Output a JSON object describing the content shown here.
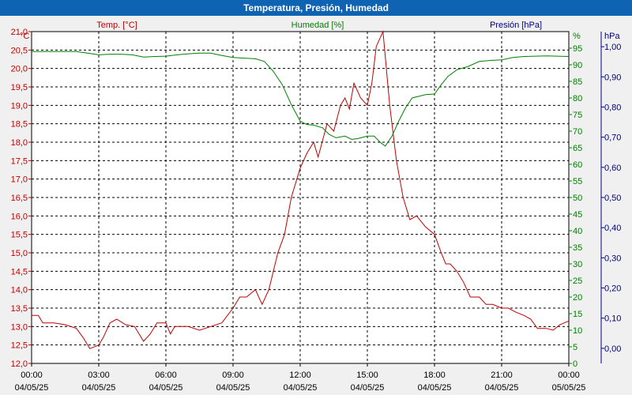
{
  "window": {
    "title": "Temperatura, Presión, Humedad"
  },
  "colors": {
    "temp": "#c00000",
    "hum": "#008000",
    "pres": "#000080",
    "titlebar": "#0f63b3"
  },
  "chart_data": {
    "type": "line",
    "title": "Temperatura, Presión, Humedad",
    "x_ticks": [
      {
        "time": "00:00",
        "date": "04/05/25"
      },
      {
        "time": "03:00",
        "date": "04/05/25"
      },
      {
        "time": "06:00",
        "date": "04/05/25"
      },
      {
        "time": "09:00",
        "date": "04/05/25"
      },
      {
        "time": "12:00",
        "date": "04/05/25"
      },
      {
        "time": "15:00",
        "date": "04/05/25"
      },
      {
        "time": "18:00",
        "date": "04/05/25"
      },
      {
        "time": "21:00",
        "date": "04/05/25"
      },
      {
        "time": "00:00",
        "date": "05/05/25"
      }
    ],
    "xlim": [
      0,
      24
    ],
    "grid": true,
    "axes": {
      "temp": {
        "label": "Temp. [°C]",
        "unit": "°C",
        "ylim": [
          12.0,
          21.0
        ],
        "ticks": [
          "12,0",
          "12,5",
          "13,0",
          "13,5",
          "14,0",
          "14,5",
          "15,0",
          "15,5",
          "16,0",
          "16,5",
          "17,0",
          "17,5",
          "18,0",
          "18,5",
          "19,0",
          "19,5",
          "20,0",
          "20,5",
          "21,0"
        ]
      },
      "hum": {
        "label": "Humedad [%]",
        "unit": "%",
        "ylim": [
          0,
          100
        ],
        "ticks": [
          "0",
          "5",
          "10",
          "15",
          "20",
          "25",
          "30",
          "35",
          "40",
          "45",
          "50",
          "55",
          "60",
          "65",
          "70",
          "75",
          "80",
          "85",
          "90",
          "95"
        ]
      },
      "pres": {
        "label": "Presión [hPa]",
        "unit": "hPa",
        "ylim": [
          -0.05,
          1.05
        ],
        "ticks": [
          "0,00",
          "0,10",
          "0,20",
          "0,30",
          "0,40",
          "0,50",
          "0,60",
          "0,70",
          "0,80",
          "0,90",
          "1,00"
        ]
      }
    },
    "series": [
      {
        "name": "Temp. [°C]",
        "axis": "temp",
        "points": [
          [
            0,
            13.3
          ],
          [
            0.3,
            13.3
          ],
          [
            0.5,
            13.1
          ],
          [
            1.0,
            13.1
          ],
          [
            1.5,
            13.05
          ],
          [
            2.0,
            12.95
          ],
          [
            2.3,
            12.7
          ],
          [
            2.6,
            12.4
          ],
          [
            3.0,
            12.5
          ],
          [
            3.2,
            12.7
          ],
          [
            3.5,
            13.1
          ],
          [
            3.8,
            13.2
          ],
          [
            4.2,
            13.05
          ],
          [
            4.6,
            13.0
          ],
          [
            5.0,
            12.6
          ],
          [
            5.3,
            12.8
          ],
          [
            5.6,
            13.1
          ],
          [
            6.0,
            13.1
          ],
          [
            6.2,
            12.8
          ],
          [
            6.4,
            13.0
          ],
          [
            7.0,
            13.0
          ],
          [
            7.5,
            12.9
          ],
          [
            8.0,
            13.0
          ],
          [
            8.5,
            13.1
          ],
          [
            9.0,
            13.5
          ],
          [
            9.3,
            13.8
          ],
          [
            9.6,
            13.8
          ],
          [
            10.0,
            14.0
          ],
          [
            10.3,
            13.6
          ],
          [
            10.6,
            14.0
          ],
          [
            11.0,
            15.0
          ],
          [
            11.3,
            15.5
          ],
          [
            11.6,
            16.5
          ],
          [
            12.0,
            17.3
          ],
          [
            12.3,
            17.7
          ],
          [
            12.6,
            18.0
          ],
          [
            12.8,
            17.6
          ],
          [
            13.2,
            18.5
          ],
          [
            13.5,
            18.3
          ],
          [
            13.8,
            19.0
          ],
          [
            14.0,
            19.2
          ],
          [
            14.2,
            18.9
          ],
          [
            14.4,
            19.6
          ],
          [
            14.7,
            19.2
          ],
          [
            15.0,
            19.0
          ],
          [
            15.2,
            19.6
          ],
          [
            15.4,
            20.6
          ],
          [
            15.7,
            21.0
          ],
          [
            16.0,
            19.0
          ],
          [
            16.3,
            17.5
          ],
          [
            16.6,
            16.5
          ],
          [
            16.9,
            15.9
          ],
          [
            17.2,
            16.0
          ],
          [
            17.6,
            15.7
          ],
          [
            18.0,
            15.5
          ],
          [
            18.3,
            15.0
          ],
          [
            18.5,
            14.7
          ],
          [
            18.7,
            14.7
          ],
          [
            19.0,
            14.5
          ],
          [
            19.3,
            14.2
          ],
          [
            19.6,
            13.8
          ],
          [
            20.0,
            13.8
          ],
          [
            20.3,
            13.6
          ],
          [
            20.6,
            13.6
          ],
          [
            21.0,
            13.5
          ],
          [
            21.3,
            13.5
          ],
          [
            21.6,
            13.4
          ],
          [
            22.0,
            13.3
          ],
          [
            22.3,
            13.2
          ],
          [
            22.6,
            12.95
          ],
          [
            23.0,
            12.95
          ],
          [
            23.3,
            12.9
          ],
          [
            23.6,
            13.05
          ],
          [
            24.0,
            13.15
          ]
        ]
      },
      {
        "name": "Humedad [%]",
        "axis": "hum",
        "points": [
          [
            0,
            94
          ],
          [
            1.0,
            94
          ],
          [
            1.5,
            94
          ],
          [
            2.0,
            94
          ],
          [
            2.5,
            93.5
          ],
          [
            3.0,
            93
          ],
          [
            3.5,
            93.2
          ],
          [
            4.0,
            93.2
          ],
          [
            4.5,
            93
          ],
          [
            5.0,
            92.3
          ],
          [
            5.5,
            92.5
          ],
          [
            6.0,
            92.6
          ],
          [
            6.5,
            93
          ],
          [
            7.0,
            93.3
          ],
          [
            7.5,
            93.5
          ],
          [
            8.0,
            93.5
          ],
          [
            8.5,
            92.8
          ],
          [
            9.0,
            92.2
          ],
          [
            9.5,
            92
          ],
          [
            10.0,
            91.8
          ],
          [
            10.4,
            91
          ],
          [
            10.8,
            88
          ],
          [
            11.2,
            84
          ],
          [
            11.6,
            78
          ],
          [
            12.0,
            73
          ],
          [
            12.3,
            72
          ],
          [
            12.6,
            71.8
          ],
          [
            13.0,
            71
          ],
          [
            13.3,
            69
          ],
          [
            13.6,
            68
          ],
          [
            14.0,
            68.5
          ],
          [
            14.3,
            67.5
          ],
          [
            14.6,
            67.8
          ],
          [
            15.0,
            68.5
          ],
          [
            15.3,
            68.5
          ],
          [
            15.6,
            66.5
          ],
          [
            15.8,
            65.5
          ],
          [
            16.1,
            68.5
          ],
          [
            16.4,
            73
          ],
          [
            16.7,
            77
          ],
          [
            17.0,
            80
          ],
          [
            17.3,
            80.5
          ],
          [
            17.6,
            81
          ],
          [
            18.0,
            81.2
          ],
          [
            18.3,
            84
          ],
          [
            18.6,
            86.5
          ],
          [
            19.0,
            88.5
          ],
          [
            19.5,
            89.5
          ],
          [
            20.0,
            91
          ],
          [
            20.5,
            91.3
          ],
          [
            21.0,
            91.5
          ],
          [
            21.5,
            92.2
          ],
          [
            22.0,
            92.5
          ],
          [
            22.5,
            92.6
          ],
          [
            23.0,
            92.7
          ],
          [
            23.5,
            92.6
          ],
          [
            24.0,
            92.5
          ]
        ]
      }
    ]
  }
}
